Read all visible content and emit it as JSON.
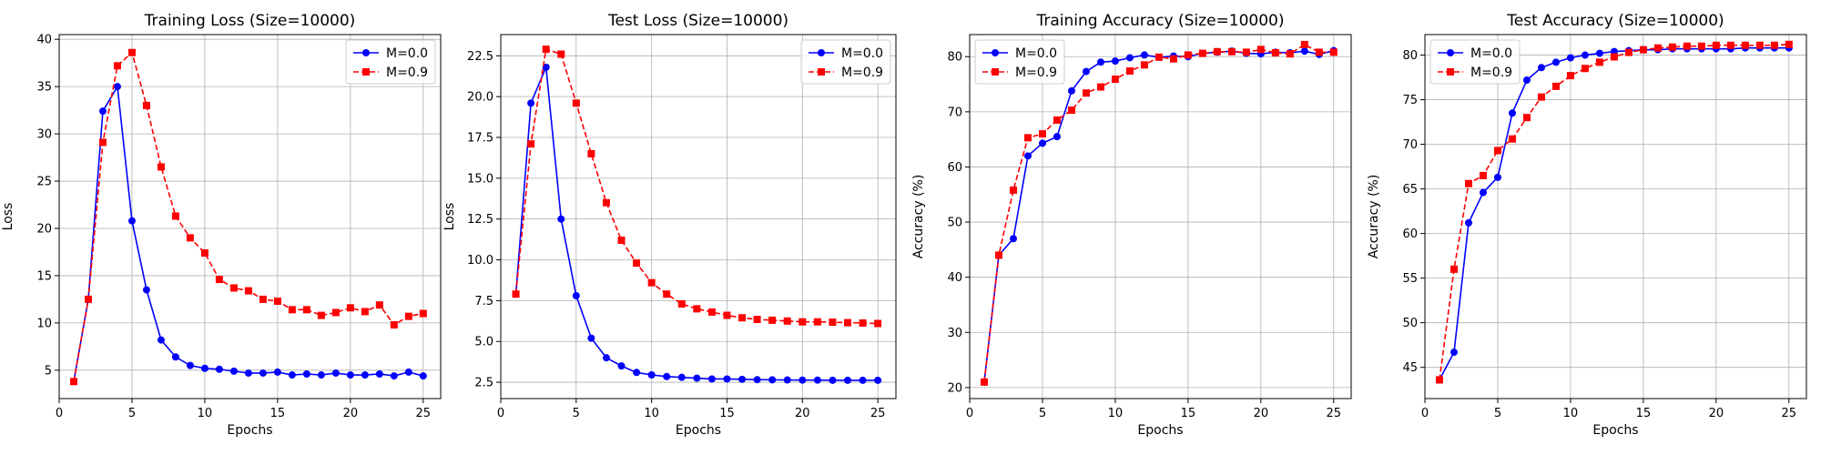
{
  "chart_data": [
    {
      "type": "line",
      "title": "Training Loss (Size=10000)",
      "xlabel": "Epochs",
      "ylabel": "Loss",
      "xlim": [
        0,
        26.2
      ],
      "ylim": [
        2.0,
        40.5
      ],
      "xticks": [
        0,
        5,
        10,
        15,
        20,
        25
      ],
      "yticks": [
        5,
        10,
        15,
        20,
        25,
        30,
        35,
        40
      ],
      "ytick_labels": [
        "5",
        "10",
        "15",
        "20",
        "25",
        "30",
        "35",
        "40"
      ],
      "legend_position": "top-right",
      "grid": true,
      "x": [
        1,
        2,
        3,
        4,
        5,
        6,
        7,
        8,
        9,
        10,
        11,
        12,
        13,
        14,
        15,
        16,
        17,
        18,
        19,
        20,
        21,
        22,
        23,
        24,
        25
      ],
      "series": [
        {
          "name": "M=0.0",
          "color": "#0000ff",
          "marker": "circle",
          "linestyle": "solid",
          "values": [
            3.8,
            12.5,
            32.4,
            35.0,
            20.8,
            13.5,
            8.2,
            6.4,
            5.5,
            5.2,
            5.1,
            4.9,
            4.7,
            4.7,
            4.8,
            4.5,
            4.6,
            4.5,
            4.7,
            4.5,
            4.5,
            4.6,
            4.4,
            4.8,
            4.4
          ]
        },
        {
          "name": "M=0.9",
          "color": "#ff0000",
          "marker": "square",
          "linestyle": "dashed",
          "values": [
            3.8,
            12.5,
            29.1,
            37.2,
            38.6,
            33.0,
            26.5,
            21.3,
            19.0,
            17.4,
            14.6,
            13.7,
            13.4,
            12.5,
            12.3,
            11.4,
            11.4,
            10.8,
            11.1,
            11.6,
            11.2,
            11.9,
            9.8,
            10.7,
            11.0
          ]
        }
      ]
    },
    {
      "type": "line",
      "title": "Test Loss (Size=10000)",
      "xlabel": "Epochs",
      "ylabel": "Loss",
      "xlim": [
        0,
        26.2
      ],
      "ylim": [
        1.5,
        23.8
      ],
      "xticks": [
        0,
        5,
        10,
        15,
        20,
        25
      ],
      "yticks": [
        2.5,
        5.0,
        7.5,
        10.0,
        12.5,
        15.0,
        17.5,
        20.0,
        22.5
      ],
      "ytick_labels": [
        "2.5",
        "5.0",
        "7.5",
        "10.0",
        "12.5",
        "15.0",
        "17.5",
        "20.0",
        "22.5"
      ],
      "legend_position": "top-right",
      "grid": true,
      "x": [
        1,
        2,
        3,
        4,
        5,
        6,
        7,
        8,
        9,
        10,
        11,
        12,
        13,
        14,
        15,
        16,
        17,
        18,
        19,
        20,
        21,
        22,
        23,
        24,
        25
      ],
      "series": [
        {
          "name": "M=0.0",
          "color": "#0000ff",
          "marker": "circle",
          "linestyle": "solid",
          "values": [
            7.9,
            19.6,
            21.8,
            12.5,
            7.8,
            5.2,
            4.0,
            3.5,
            3.1,
            2.95,
            2.85,
            2.8,
            2.75,
            2.7,
            2.7,
            2.68,
            2.66,
            2.65,
            2.64,
            2.63,
            2.63,
            2.62,
            2.62,
            2.62,
            2.62
          ]
        },
        {
          "name": "M=0.9",
          "color": "#ff0000",
          "marker": "square",
          "linestyle": "dashed",
          "values": [
            7.9,
            17.1,
            22.9,
            22.6,
            19.6,
            16.5,
            13.5,
            11.2,
            9.8,
            8.6,
            7.9,
            7.3,
            7.0,
            6.8,
            6.6,
            6.45,
            6.35,
            6.3,
            6.25,
            6.2,
            6.2,
            6.18,
            6.15,
            6.13,
            6.1
          ]
        }
      ]
    },
    {
      "type": "line",
      "title": "Training Accuracy (Size=10000)",
      "xlabel": "Epochs",
      "ylabel": "Accuracy (%)",
      "xlim": [
        0,
        26.2
      ],
      "ylim": [
        18.0,
        84.0
      ],
      "xticks": [
        0,
        5,
        10,
        15,
        20,
        25
      ],
      "yticks": [
        20,
        30,
        40,
        50,
        60,
        70,
        80
      ],
      "ytick_labels": [
        "20",
        "30",
        "40",
        "50",
        "60",
        "70",
        "80"
      ],
      "legend_position": "top-left",
      "grid": true,
      "x": [
        1,
        2,
        3,
        4,
        5,
        6,
        7,
        8,
        9,
        10,
        11,
        12,
        13,
        14,
        15,
        16,
        17,
        18,
        19,
        20,
        21,
        22,
        23,
        24,
        25
      ],
      "series": [
        {
          "name": "M=0.0",
          "color": "#0000ff",
          "marker": "circle",
          "linestyle": "solid",
          "values": [
            21.0,
            44.0,
            47.0,
            62.0,
            64.3,
            65.5,
            73.8,
            77.3,
            79.0,
            79.2,
            79.8,
            80.3,
            79.9,
            80.1,
            80.0,
            80.6,
            80.8,
            81.0,
            80.6,
            80.5,
            80.8,
            80.7,
            81.0,
            80.4,
            81.1
          ]
        },
        {
          "name": "M=0.9",
          "color": "#ff0000",
          "marker": "square",
          "linestyle": "dashed",
          "values": [
            21.0,
            44.0,
            55.8,
            65.3,
            66.0,
            68.5,
            70.3,
            73.4,
            74.5,
            75.9,
            77.4,
            78.5,
            79.9,
            79.6,
            80.3,
            80.6,
            80.9,
            80.9,
            80.8,
            81.3,
            80.7,
            80.5,
            82.2,
            80.8,
            80.8
          ]
        }
      ]
    },
    {
      "type": "line",
      "title": "Test Accuracy (Size=10000)",
      "xlabel": "Epochs",
      "ylabel": "Accuracy (%)",
      "xlim": [
        0,
        26.2
      ],
      "ylim": [
        41.5,
        82.3
      ],
      "xticks": [
        0,
        5,
        10,
        15,
        20,
        25
      ],
      "yticks": [
        45,
        50,
        55,
        60,
        65,
        70,
        75,
        80
      ],
      "ytick_labels": [
        "45",
        "50",
        "55",
        "60",
        "65",
        "70",
        "75",
        "80"
      ],
      "legend_position": "top-left",
      "grid": true,
      "x": [
        1,
        2,
        3,
        4,
        5,
        6,
        7,
        8,
        9,
        10,
        11,
        12,
        13,
        14,
        15,
        16,
        17,
        18,
        19,
        20,
        21,
        22,
        23,
        24,
        25
      ],
      "series": [
        {
          "name": "M=0.0",
          "color": "#0000ff",
          "marker": "circle",
          "linestyle": "solid",
          "values": [
            43.6,
            46.7,
            61.2,
            64.6,
            66.3,
            73.5,
            77.2,
            78.6,
            79.2,
            79.7,
            80.0,
            80.2,
            80.4,
            80.5,
            80.6,
            80.6,
            80.7,
            80.7,
            80.7,
            80.7,
            80.7,
            80.8,
            80.8,
            80.8,
            80.8
          ]
        },
        {
          "name": "M=0.9",
          "color": "#ff0000",
          "marker": "square",
          "linestyle": "dashed",
          "values": [
            43.6,
            56.0,
            65.6,
            66.5,
            69.3,
            70.6,
            73.0,
            75.3,
            76.5,
            77.7,
            78.5,
            79.2,
            79.8,
            80.3,
            80.6,
            80.8,
            80.9,
            81.0,
            81.0,
            81.1,
            81.1,
            81.1,
            81.1,
            81.1,
            81.2
          ]
        }
      ]
    }
  ]
}
